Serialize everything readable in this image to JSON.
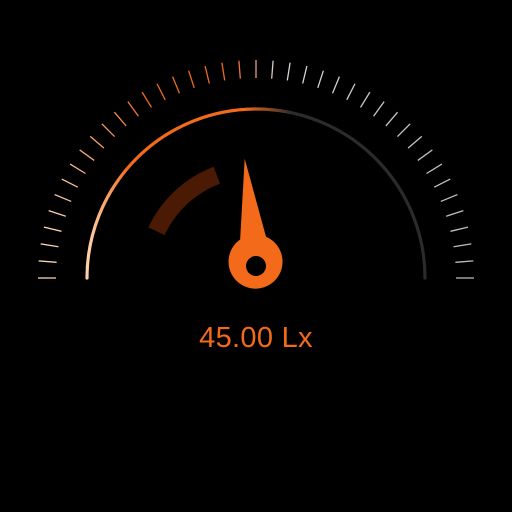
{
  "gauge": {
    "value": 45.0,
    "min": 0,
    "max": 100,
    "value_text": "45.00 Lx"
  },
  "colors": {
    "background": "#000000",
    "accent": "#F26A1A",
    "arc_dim": "#2b2b2b",
    "tick_dim": "#c9c9c9",
    "progress_dark": "#4a1a05",
    "needle_hole": "#000000"
  },
  "icons": {
    "needle": "gauge-needle-icon"
  }
}
